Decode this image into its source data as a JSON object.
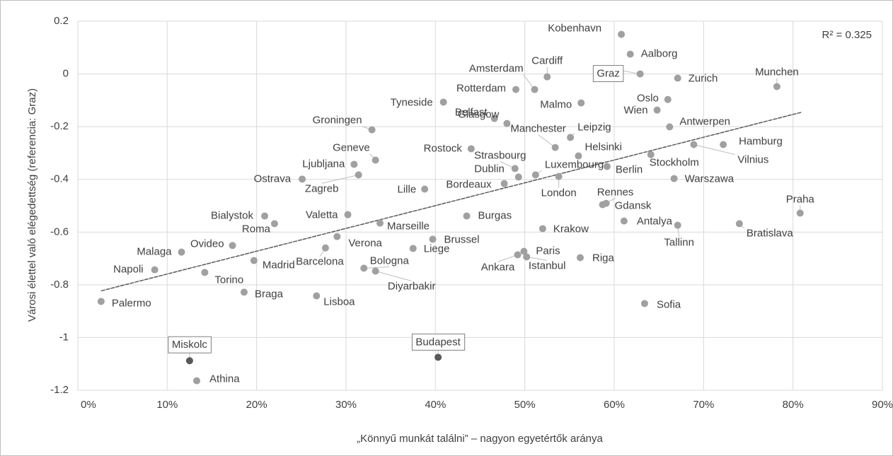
{
  "chart_data": {
    "type": "scatter",
    "x_label": "„Könnyű munkát találni” – nagyon egyetértők aránya",
    "y_label": "Városi élettel való elégedettség (referencia: Graz)",
    "annotation": "R² = 0.325",
    "xlim": [
      0,
      90
    ],
    "xticks": [
      {
        "value": 0,
        "label": "0%"
      },
      {
        "value": 10,
        "label": "10%"
      },
      {
        "value": 20,
        "label": "20%"
      },
      {
        "value": 30,
        "label": "30%"
      },
      {
        "value": 40,
        "label": "40%"
      },
      {
        "value": 50,
        "label": "50%"
      },
      {
        "value": 60,
        "label": "60%"
      },
      {
        "value": 70,
        "label": "70%"
      },
      {
        "value": 80,
        "label": "80%"
      },
      {
        "value": 90,
        "label": "90%"
      }
    ],
    "ylim": [
      -1.2,
      0.2
    ],
    "yticks": [
      0.2,
      0,
      -0.2,
      -0.4,
      -0.6,
      -0.8,
      -1,
      -1.2
    ],
    "grid": true,
    "color": "#a0a0a0",
    "trendline": {
      "x": [
        2.6,
        81
      ],
      "y": [
        -0.823,
        -0.145
      ],
      "color": "#595959"
    },
    "points": [
      {
        "name": "Kobenhavn",
        "x": 60.8,
        "y": 0.15
      },
      {
        "name": "Aalborg",
        "x": 61.8,
        "y": 0.075
      },
      {
        "name": "Graz",
        "x": 62.9,
        "y": 0,
        "boxed": true
      },
      {
        "name": "Zurich",
        "x": 67.1,
        "y": -0.016
      },
      {
        "name": "Munchen",
        "x": 78.2,
        "y": -0.048
      },
      {
        "name": "Cardiff",
        "x": 52.5,
        "y": -0.011
      },
      {
        "name": "Amsterdam",
        "x": 51.1,
        "y": -0.059
      },
      {
        "name": "Rotterdam",
        "x": 49.0,
        "y": -0.059
      },
      {
        "name": "Malmo",
        "x": 56.3,
        "y": -0.11
      },
      {
        "name": "Oslo",
        "x": 66.0,
        "y": -0.097
      },
      {
        "name": "Wien",
        "x": 64.8,
        "y": -0.137
      },
      {
        "name": "Tyneside",
        "x": 40.9,
        "y": -0.107
      },
      {
        "name": "Belfast",
        "x": 46.6,
        "y": -0.169
      },
      {
        "name": "Antwerpen",
        "x": 66.2,
        "y": -0.201
      },
      {
        "name": "Groningen",
        "x": 32.9,
        "y": -0.212
      },
      {
        "name": "Manchester",
        "x": 53.4,
        "y": -0.279
      },
      {
        "name": "Leipzig",
        "x": 55.1,
        "y": -0.241
      },
      {
        "name": "Glasgow",
        "x": 48.0,
        "y": -0.188
      },
      {
        "name": "Rostock",
        "x": 44.0,
        "y": -0.284
      },
      {
        "name": "Helsinki",
        "x": 56.0,
        "y": -0.311
      },
      {
        "name": "Hamburg",
        "x": 72.2,
        "y": -0.268
      },
      {
        "name": "Vilnius",
        "x": 68.9,
        "y": -0.268
      },
      {
        "name": "Stockholm",
        "x": 64.1,
        "y": -0.306
      },
      {
        "name": "Berlin",
        "x": 59.2,
        "y": -0.351
      },
      {
        "name": "Warszawa",
        "x": 66.7,
        "y": -0.397
      },
      {
        "name": "Geneve",
        "x": 33.3,
        "y": -0.327
      },
      {
        "name": "Ljubljana",
        "x": 30.9,
        "y": -0.343
      },
      {
        "name": "Zagreb",
        "x": 31.4,
        "y": -0.383
      },
      {
        "name": "Ostrava",
        "x": 25.1,
        "y": -0.399
      },
      {
        "name": "Strasbourg",
        "x": 48.9,
        "y": -0.359
      },
      {
        "name": "Dublin",
        "x": 49.3,
        "y": -0.391
      },
      {
        "name": "Luxembourg",
        "x": 51.2,
        "y": -0.383
      },
      {
        "name": "London",
        "x": 53.8,
        "y": -0.389
      },
      {
        "name": "Bordeaux",
        "x": 47.7,
        "y": -0.416
      },
      {
        "name": "Lille",
        "x": 38.8,
        "y": -0.437
      },
      {
        "name": "Rennes",
        "x": 58.7,
        "y": -0.496
      },
      {
        "name": "Gdansk",
        "x": 59.1,
        "y": -0.491
      },
      {
        "name": "Praha",
        "x": 80.8,
        "y": -0.528
      },
      {
        "name": "Burgas",
        "x": 43.5,
        "y": -0.539
      },
      {
        "name": "Bialystok",
        "x": 20.9,
        "y": -0.539
      },
      {
        "name": "Valetta",
        "x": 30.2,
        "y": -0.534
      },
      {
        "name": "Roma",
        "x": 22.0,
        "y": -0.568
      },
      {
        "name": "Marseille",
        "x": 33.8,
        "y": -0.566
      },
      {
        "name": "Antalya",
        "x": 61.1,
        "y": -0.558
      },
      {
        "name": "Tallinn",
        "x": 67.1,
        "y": -0.574
      },
      {
        "name": "Bratislava",
        "x": 74.0,
        "y": -0.568
      },
      {
        "name": "Krakow",
        "x": 52.0,
        "y": -0.587
      },
      {
        "name": "Verona",
        "x": 29.0,
        "y": -0.617
      },
      {
        "name": "Brussel",
        "x": 39.7,
        "y": -0.627
      },
      {
        "name": "Ovideo",
        "x": 17.3,
        "y": -0.651
      },
      {
        "name": "Barcelona",
        "x": 27.7,
        "y": -0.66
      },
      {
        "name": "Liege",
        "x": 37.5,
        "y": -0.662
      },
      {
        "name": "Malaga",
        "x": 11.6,
        "y": -0.676
      },
      {
        "name": "Paris",
        "x": 49.9,
        "y": -0.673
      },
      {
        "name": "Ankara",
        "x": 49.2,
        "y": -0.686
      },
      {
        "name": "Istanbul",
        "x": 50.2,
        "y": -0.694
      },
      {
        "name": "Riga",
        "x": 56.2,
        "y": -0.697
      },
      {
        "name": "Madrid",
        "x": 19.7,
        "y": -0.708
      },
      {
        "name": "Bologna",
        "x": 32.0,
        "y": -0.737
      },
      {
        "name": "Diyarbakir",
        "x": 33.3,
        "y": -0.748
      },
      {
        "name": "Napoli",
        "x": 8.6,
        "y": -0.743
      },
      {
        "name": "Torino",
        "x": 14.2,
        "y": -0.753
      },
      {
        "name": "Braga",
        "x": 18.6,
        "y": -0.828
      },
      {
        "name": "Lisboa",
        "x": 26.7,
        "y": -0.842
      },
      {
        "name": "Palermo",
        "x": 2.6,
        "y": -0.863
      },
      {
        "name": "Sofia",
        "x": 63.4,
        "y": -0.871
      },
      {
        "name": "Miskolc",
        "x": 12.5,
        "y": -1.088,
        "boxed": true,
        "color": "#595959"
      },
      {
        "name": "Budapest",
        "x": 40.3,
        "y": -1.075,
        "boxed": true,
        "color": "#595959"
      },
      {
        "name": "Athina",
        "x": 13.3,
        "y": -1.164
      }
    ]
  }
}
